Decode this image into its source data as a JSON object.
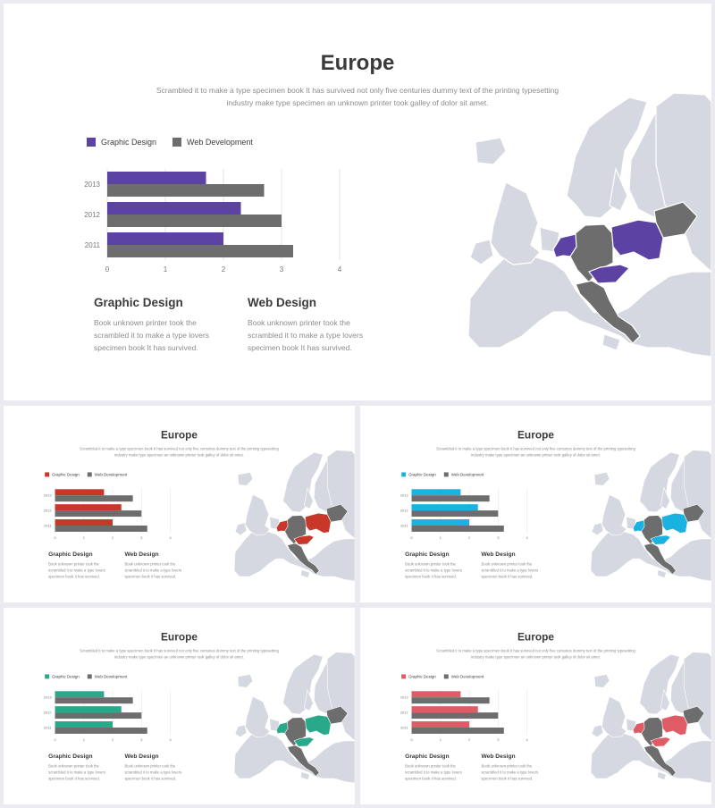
{
  "title": "Europe",
  "subtitle": [
    "Scrambled it to make a type specimen book It has survived  not only five  centuries dummy text of the printing typesetting",
    "industry make type specimen an unknown printer took galley of dolor sit amet."
  ],
  "legend": {
    "graphic": "Graphic Design",
    "web": "Web Development"
  },
  "sections": [
    {
      "heading": "Graphic Design",
      "body": [
        "Book unknown printer took the",
        "scrambled it to make a type lovers",
        "specimen book It has survived."
      ]
    },
    {
      "heading": "Web Design",
      "body": [
        "Book unknown printer took the",
        "scrambled it to make a type lovers",
        "specimen book It has survived."
      ]
    }
  ],
  "colors": {
    "web": "#6d6d6d",
    "map_base": "#d5d8e0",
    "map_highlight_gray": "#6d6d6d",
    "text_dark": "#3b3b3b",
    "text_light": "#8c8c8c",
    "grid": "#e3e3e3",
    "variants": {
      "main": "#5b42a3",
      "red": "#c8382a",
      "blue": "#1ab2e0",
      "green": "#2aa98a",
      "pink": "#df5b66"
    }
  },
  "chart_data": {
    "type": "bar",
    "orientation": "horizontal",
    "categories": [
      "2013",
      "2012",
      "2011"
    ],
    "series": [
      {
        "name": "Graphic Design",
        "values": [
          1.7,
          2.3,
          2.0
        ]
      },
      {
        "name": "Web Development",
        "values": [
          2.7,
          3.0,
          3.2
        ]
      }
    ],
    "xlim": [
      0,
      4
    ],
    "xticks": [
      "0",
      "1",
      "2",
      "3",
      "4"
    ],
    "grid": true,
    "legend": "top-left"
  },
  "slides": [
    {
      "id": "main",
      "variant": "main"
    },
    {
      "id": "red",
      "variant": "red"
    },
    {
      "id": "blue",
      "variant": "blue"
    },
    {
      "id": "green",
      "variant": "green"
    },
    {
      "id": "pink",
      "variant": "pink"
    }
  ]
}
